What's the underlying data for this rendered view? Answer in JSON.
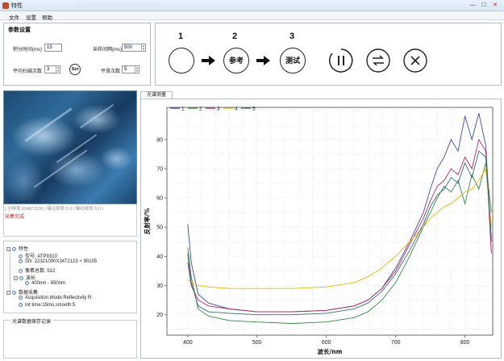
{
  "window": {
    "title": "特性",
    "blur_tabs": "·· ····· ···· ····· ···· ····· ····",
    "min": "—",
    "max": "☐",
    "close": "✕"
  },
  "menu": [
    "文件",
    "设置",
    "帮助"
  ],
  "params": {
    "title": "参数设置",
    "integration_label": "积分时间(ms)",
    "integration_value": "15",
    "sample_interval_label": "采样间隔(ms)",
    "sample_interval_value": "500",
    "avg_scans_label": "平均扫描次数",
    "avg_scans_value": "3",
    "set_label": "Set",
    "smooth_label": "平滑次数",
    "smooth_value": "5"
  },
  "steps": {
    "numbers": [
      "1",
      "2",
      "3"
    ],
    "reference_label": "参考",
    "test_label": "测试"
  },
  "camera": {
    "status": "| 分辨率:2048*1536 | 曝光帧率:5.0 | 解码帧率:5.0 |",
    "message": "采集完成"
  },
  "tree": {
    "props_title": "特性",
    "model": "型号: ATP9310",
    "sn": "SN: 22321090X3472123 + 90105",
    "pixels": "像素总数: 512",
    "wavelength_title": "波长",
    "wavelength_range": "400nm - 850nm",
    "acq_title": "数据采集",
    "acq_mode": "Acquisition Mode:Reflectivity R",
    "int_time": "Int time:15ms,smooth:5"
  },
  "save_panel": {
    "label": "光谱数据保存记录"
  },
  "chart_tab": "光谱测量",
  "colors": {
    "s1": "#3b4aa0",
    "s2": "#2e8b3e",
    "s3": "#b5246b",
    "s4": "#e6b800",
    "s5": "#3a6a75"
  },
  "chart_data": {
    "type": "line",
    "xlabel": "波长/nm",
    "ylabel": "反射率/%",
    "xlim": [
      370,
      840
    ],
    "ylim": [
      13,
      91
    ],
    "xticks": [
      400,
      500,
      600,
      700,
      800
    ],
    "yticks": [
      20,
      30,
      40,
      50,
      60,
      70,
      80
    ],
    "grid": true,
    "legend_position": "top-left",
    "series": [
      {
        "name": "1",
        "color": "#3b4aa0",
        "x": [
          400,
          405,
          415,
          430,
          460,
          500,
          550,
          600,
          640,
          660,
          680,
          700,
          720,
          740,
          750,
          760,
          770,
          780,
          790,
          800,
          810,
          820,
          830,
          838
        ],
        "y": [
          51,
          38,
          27,
          24,
          22,
          21,
          21,
          21.5,
          23,
          25,
          29,
          36,
          45,
          55,
          63,
          70,
          74,
          80,
          76,
          88,
          80,
          89,
          78,
          45
        ]
      },
      {
        "name": "2",
        "color": "#2e8b3e",
        "x": [
          400,
          405,
          415,
          430,
          460,
          500,
          550,
          600,
          640,
          660,
          680,
          700,
          720,
          740,
          750,
          760,
          770,
          780,
          790,
          800,
          810,
          820,
          830,
          838
        ],
        "y": [
          43,
          33,
          22,
          19.5,
          18,
          17.5,
          17,
          17.5,
          19,
          21,
          25,
          31,
          40,
          50,
          55,
          60,
          64,
          62,
          66,
          58,
          68,
          63,
          72,
          55
        ]
      },
      {
        "name": "3",
        "color": "#b5246b",
        "x": [
          400,
          405,
          415,
          430,
          460,
          500,
          550,
          600,
          640,
          660,
          680,
          700,
          720,
          740,
          750,
          760,
          770,
          780,
          790,
          800,
          810,
          820,
          830,
          838
        ],
        "y": [
          38,
          30,
          25,
          23,
          22,
          21,
          21,
          21.5,
          23,
          25,
          29,
          35,
          44,
          53,
          59,
          64,
          66,
          70,
          68,
          74,
          70,
          80,
          76,
          41
        ]
      },
      {
        "name": "4",
        "color": "#e6b800",
        "x": [
          400,
          405,
          415,
          430,
          460,
          500,
          550,
          600,
          640,
          660,
          680,
          700,
          720,
          740,
          750,
          760,
          770,
          780,
          790,
          800,
          810,
          820,
          830,
          838
        ],
        "y": [
          32,
          31,
          30,
          29.5,
          29,
          29,
          29,
          29.5,
          31,
          33,
          36,
          40,
          45,
          50,
          53,
          55,
          57,
          58,
          60,
          62,
          63,
          66,
          70,
          50
        ]
      },
      {
        "name": "5",
        "color": "#3a6a75",
        "x": [
          400,
          405,
          415,
          430,
          460,
          500,
          550,
          600,
          640,
          660,
          680,
          700,
          720,
          740,
          750,
          760,
          770,
          780,
          790,
          800,
          810,
          820,
          830,
          838
        ],
        "y": [
          41,
          31,
          23,
          21,
          20.5,
          20,
          20,
          20.5,
          22,
          24,
          28,
          34,
          42,
          51,
          57,
          61,
          63,
          67,
          65,
          72,
          67,
          76,
          74,
          46
        ]
      }
    ]
  }
}
